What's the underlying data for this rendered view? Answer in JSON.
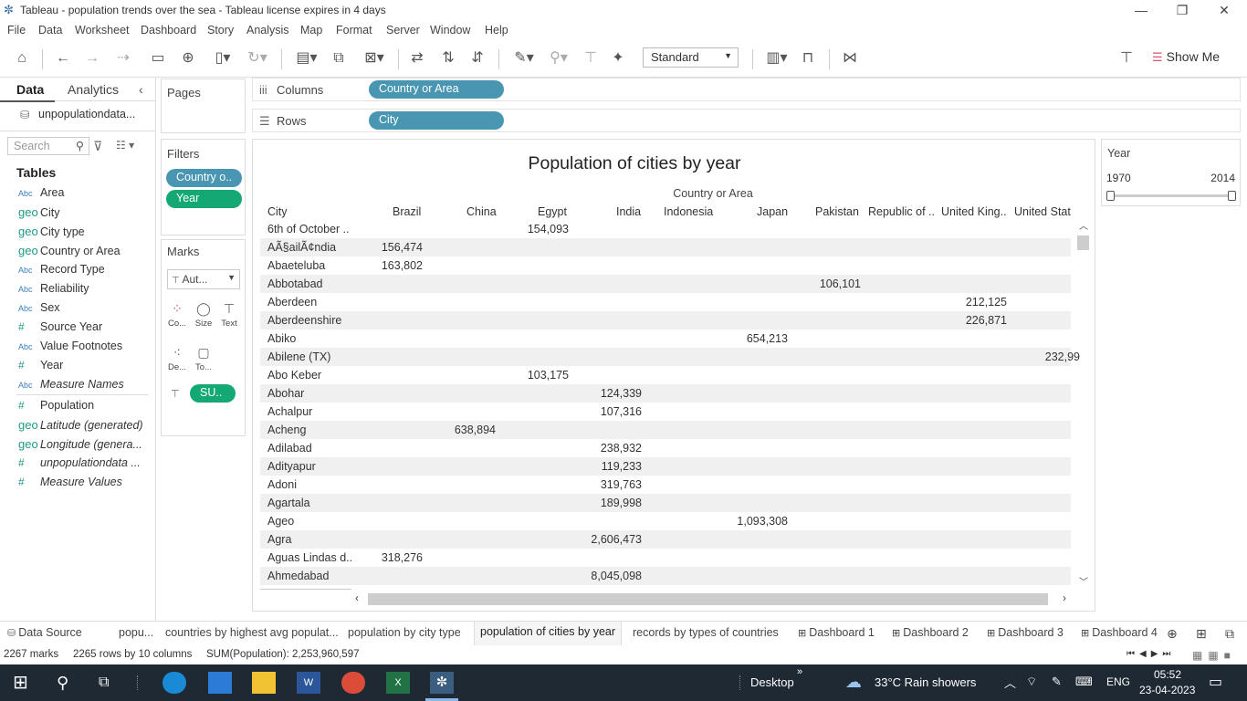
{
  "window": {
    "title": "Tableau - population trends over the sea - Tableau license expires in 4 days"
  },
  "menu": [
    "File",
    "Data",
    "Worksheet",
    "Dashboard",
    "Story",
    "Analysis",
    "Map",
    "Format",
    "Server",
    "Window",
    "Help"
  ],
  "toolbar": {
    "fit_select": "Standard",
    "show_me": "Show Me"
  },
  "data_pane": {
    "tabs": [
      "Data",
      "Analytics"
    ],
    "datasource": "unpopulationdata...",
    "search_placeholder": "Search",
    "tables_heading": "Tables",
    "fields": [
      {
        "type": "Abc",
        "name": "Area"
      },
      {
        "type": "geo",
        "name": "City"
      },
      {
        "type": "geo",
        "name": "City type"
      },
      {
        "type": "geo",
        "name": "Country or Area"
      },
      {
        "type": "Abc",
        "name": "Record Type"
      },
      {
        "type": "Abc",
        "name": "Reliability"
      },
      {
        "type": "Abc",
        "name": "Sex"
      },
      {
        "type": "#",
        "name": "Source Year"
      },
      {
        "type": "Abc",
        "name": "Value Footnotes"
      },
      {
        "type": "#",
        "name": "Year"
      },
      {
        "type": "Abc",
        "name": "Measure Names"
      },
      {
        "type": "#",
        "name": "Population"
      },
      {
        "type": "geo",
        "name": "Latitude (generated)"
      },
      {
        "type": "geo",
        "name": "Longitude (genera..."
      },
      {
        "type": "#",
        "name": "unpopulationdata ..."
      },
      {
        "type": "#",
        "name": "Measure Values"
      }
    ]
  },
  "pages": {
    "title": "Pages"
  },
  "filters": {
    "title": "Filters",
    "pills": [
      "Country o..",
      "Year"
    ]
  },
  "marks": {
    "title": "Marks",
    "type": "Aut...",
    "buttons": [
      "Co...",
      "Size",
      "Text",
      "De...",
      "To..."
    ],
    "pill": "SU.."
  },
  "shelves": {
    "columns_label": "Columns",
    "columns_pill": "Country or Area",
    "rows_label": "Rows",
    "rows_pill": "City"
  },
  "viz": {
    "title": "Population of cities by year",
    "column_group": "Country or Area",
    "city_header": "City",
    "columns": [
      "Brazil",
      "China",
      "Egypt",
      "India",
      "Indonesia",
      "Japan",
      "Pakistan",
      "Republic of ..",
      "United King..",
      "United Stat"
    ],
    "rows": [
      {
        "city": "6th of October ..",
        "col": 2,
        "value": "154,093"
      },
      {
        "city": "AÃ§ailÃ¢ndia",
        "col": 0,
        "value": "156,474"
      },
      {
        "city": "Abaeteluba",
        "col": 0,
        "value": "163,802"
      },
      {
        "city": "Abbotabad",
        "col": 6,
        "value": "106,101"
      },
      {
        "city": "Aberdeen",
        "col": 8,
        "value": "212,125"
      },
      {
        "city": "Aberdeenshire",
        "col": 8,
        "value": "226,871"
      },
      {
        "city": "Abiko",
        "col": 5,
        "value": "654,213"
      },
      {
        "city": "Abilene (TX)",
        "col": 9,
        "value": "232,99"
      },
      {
        "city": "Abo Keber",
        "col": 2,
        "value": "103,175"
      },
      {
        "city": "Abohar",
        "col": 3,
        "value": "124,339"
      },
      {
        "city": "Achalpur",
        "col": 3,
        "value": "107,316"
      },
      {
        "city": "Acheng",
        "col": 1,
        "value": "638,894"
      },
      {
        "city": "Adilabad",
        "col": 3,
        "value": "238,932"
      },
      {
        "city": "Adityapur",
        "col": 3,
        "value": "119,233"
      },
      {
        "city": "Adoni",
        "col": 3,
        "value": "319,763"
      },
      {
        "city": "Agartala",
        "col": 3,
        "value": "189,998"
      },
      {
        "city": "Ageo",
        "col": 5,
        "value": "1,093,308"
      },
      {
        "city": "Agra",
        "col": 3,
        "value": "2,606,473"
      },
      {
        "city": "Aguas Lindas d..",
        "col": 0,
        "value": "318,276"
      },
      {
        "city": "Ahmedabad",
        "col": 3,
        "value": "8,045,098"
      }
    ]
  },
  "year_filter": {
    "title": "Year",
    "min": "1970",
    "max": "2014"
  },
  "sheet_tabs": [
    "Data Source",
    "popu...",
    "countries by highest avg populat...",
    "population by city type",
    "population of cities by year",
    "records by types of countries",
    "Dashboard 1",
    "Dashboard 2",
    "Dashboard 3",
    "Dashboard 4"
  ],
  "active_tab": "population of cities by year",
  "status": {
    "marks": "2267 marks",
    "rows": "2265 rows by 10 columns",
    "sum": "SUM(Population): 2,253,960,597"
  },
  "taskbar": {
    "desktop": "Desktop",
    "weather": "33°C  Rain showers",
    "lang": "ENG",
    "time": "05:52",
    "date": "23-04-2023"
  },
  "colors": {
    "blue_pill": "#4996b2",
    "green_pill": "#13a874",
    "taskbar": "#1e2933"
  }
}
